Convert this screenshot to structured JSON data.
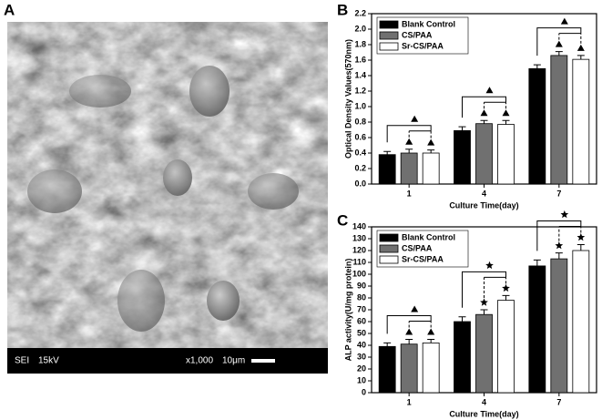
{
  "image": {
    "panel": "A",
    "info": [
      "SEI",
      "15kV",
      "x1,000",
      "10μm"
    ]
  },
  "chart_data": [
    {
      "type": "bar",
      "panel": "B",
      "y_label": "Optical Density Values(570nm)",
      "x_label": "Culture Time(day)",
      "categories": [
        "1",
        "4",
        "7"
      ],
      "series": [
        {
          "name": "Blank Control",
          "color": "#000000",
          "values": [
            0.38,
            0.69,
            1.49
          ],
          "errors": [
            0.04,
            0.05,
            0.05
          ]
        },
        {
          "name": "CS/PAA",
          "color": "#707070",
          "values": [
            0.4,
            0.78,
            1.66
          ],
          "errors": [
            0.05,
            0.04,
            0.05
          ]
        },
        {
          "name": "Sr-CS/PAA",
          "color": "#ffffff",
          "values": [
            0.4,
            0.77,
            1.61
          ],
          "errors": [
            0.04,
            0.05,
            0.05
          ]
        }
      ],
      "ylim": [
        0,
        2.2
      ],
      "yticks": [
        {
          "value": 0,
          "label": "0.0"
        },
        0.2,
        0.4,
        0.6,
        0.8,
        {
          "value": 1,
          "label": "1.0"
        },
        1.2,
        1.4,
        1.6,
        1.8,
        {
          "value": 2,
          "label": "2.0"
        },
        2.2
      ],
      "markers": [
        "triangle",
        "triangle",
        "triangle"
      ],
      "legend": "upper left"
    },
    {
      "type": "bar",
      "panel": "C",
      "y_label": "ALP activity(U/mg protein)",
      "x_label": "Culture Time(day)",
      "categories": [
        "1",
        "4",
        "7"
      ],
      "series": [
        {
          "name": "Blank Control",
          "color": "#000000",
          "values": [
            39,
            60,
            107
          ],
          "errors": [
            3,
            4,
            5
          ]
        },
        {
          "name": "CS/PAA",
          "color": "#707070",
          "values": [
            41,
            66,
            113
          ],
          "errors": [
            4,
            4,
            5
          ]
        },
        {
          "name": "Sr-CS/PAA",
          "color": "#ffffff",
          "values": [
            42,
            78,
            120
          ],
          "errors": [
            3,
            4,
            5
          ]
        }
      ],
      "ylim": [
        0,
        140
      ],
      "yticks": [
        0,
        10,
        20,
        30,
        40,
        50,
        60,
        70,
        80,
        90,
        100,
        110,
        120,
        130,
        140
      ],
      "markers": [
        "triangle",
        "star",
        "star"
      ],
      "legend": "upper left"
    }
  ]
}
